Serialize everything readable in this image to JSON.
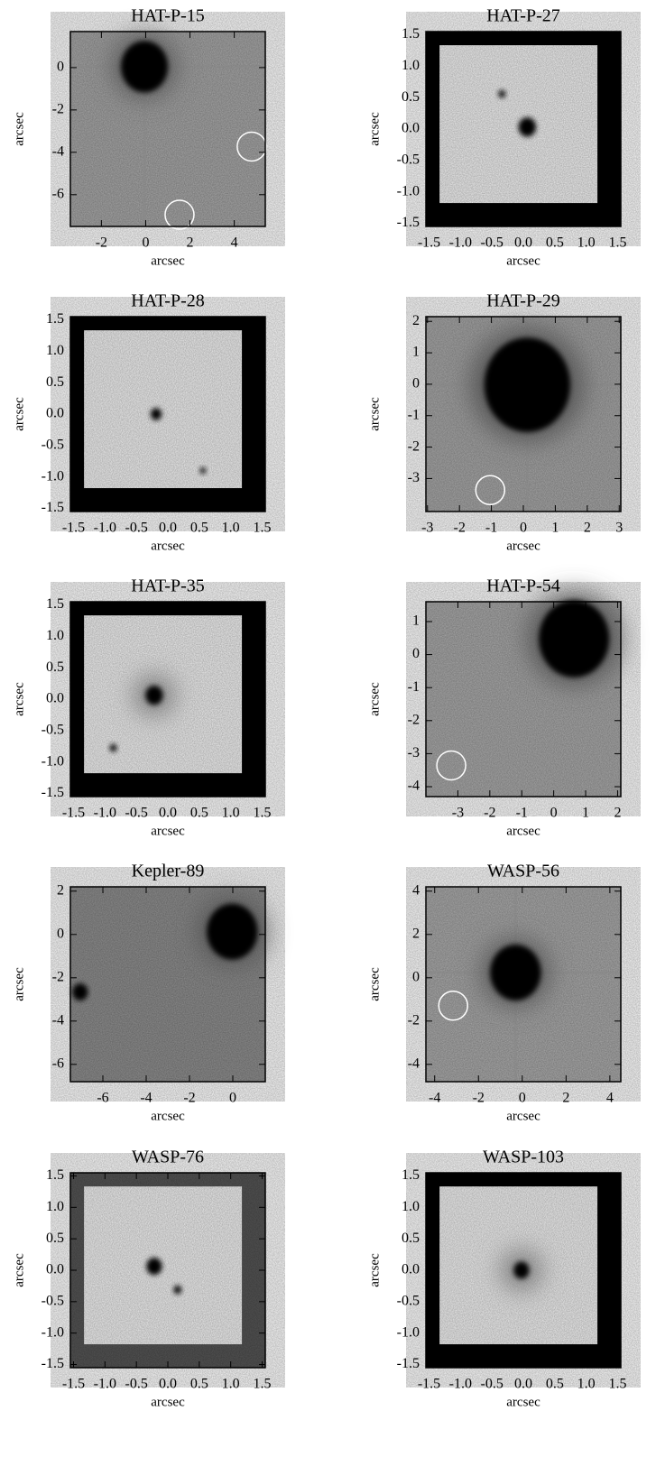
{
  "panels": [
    {
      "title": "HAT-P-15",
      "xlabel": "arcsec",
      "ylabel": "arcsec",
      "xlim": [
        -3.4,
        5.4
      ],
      "ylim": [
        -7.5,
        1.7
      ],
      "xticks": [
        -2,
        0,
        2,
        4
      ],
      "yticks": [
        0,
        -2,
        -4,
        -6
      ]
    },
    {
      "title": "HAT-P-27",
      "xlabel": "arcsec",
      "ylabel": "arcsec",
      "xlim": [
        -1.55,
        1.55
      ],
      "ylim": [
        -1.55,
        1.55
      ],
      "xticks": [
        -1.5,
        {
          "value": -1,
          "label": "-1.0"
        },
        -0.5,
        {
          "value": 0,
          "label": "0.0"
        },
        0.5,
        {
          "value": 1,
          "label": "1.0"
        },
        1.5
      ],
      "yticks": [
        1.5,
        {
          "value": 1,
          "label": "1.0"
        },
        0.5,
        {
          "value": 0,
          "label": "0.0"
        },
        -0.5,
        {
          "value": -1,
          "label": "-1.0"
        },
        -1.5
      ]
    },
    {
      "title": "HAT-P-28",
      "xlabel": "arcsec",
      "ylabel": "arcsec",
      "xlim": [
        -1.55,
        1.55
      ],
      "ylim": [
        -1.55,
        1.55
      ],
      "xticks": [
        -1.5,
        {
          "value": -1,
          "label": "-1.0"
        },
        -0.5,
        {
          "value": 0,
          "label": "0.0"
        },
        0.5,
        {
          "value": 1,
          "label": "1.0"
        },
        1.5
      ],
      "yticks": [
        1.5,
        {
          "value": 1,
          "label": "1.0"
        },
        0.5,
        {
          "value": 0,
          "label": "0.0"
        },
        -0.5,
        {
          "value": -1,
          "label": "-1.0"
        },
        -1.5
      ]
    },
    {
      "title": "HAT-P-29",
      "xlabel": "arcsec",
      "ylabel": "arcsec",
      "xlim": [
        -3.05,
        3.05
      ],
      "ylim": [
        -4.05,
        2.15
      ],
      "xticks": [
        -3,
        -2,
        -1,
        0,
        1,
        2,
        3
      ],
      "yticks": [
        2,
        1,
        0,
        -1,
        -2,
        -3
      ]
    },
    {
      "title": "HAT-P-35",
      "xlabel": "arcsec",
      "ylabel": "arcsec",
      "xlim": [
        -1.55,
        1.55
      ],
      "ylim": [
        -1.55,
        1.55
      ],
      "xticks": [
        -1.5,
        {
          "value": -1,
          "label": "-1.0"
        },
        -0.5,
        {
          "value": 0,
          "label": "0.0"
        },
        0.5,
        {
          "value": 1,
          "label": "1.0"
        },
        1.5
      ],
      "yticks": [
        1.5,
        {
          "value": 1,
          "label": "1.0"
        },
        0.5,
        {
          "value": 0,
          "label": "0.0"
        },
        -0.5,
        {
          "value": -1,
          "label": "-1.0"
        },
        -1.5
      ]
    },
    {
      "title": "HAT-P-54",
      "xlabel": "arcsec",
      "ylabel": "arcsec",
      "xlim": [
        -4.0,
        2.1
      ],
      "ylim": [
        -4.3,
        1.6
      ],
      "xticks": [
        -3,
        -2,
        -1,
        0,
        1,
        2
      ],
      "yticks": [
        1,
        0,
        -1,
        -2,
        -3,
        -4
      ]
    },
    {
      "title": "Kepler-89",
      "xlabel": "arcsec",
      "ylabel": "arcsec",
      "xlim": [
        -7.5,
        1.5
      ],
      "ylim": [
        -6.8,
        2.2
      ],
      "xticks": [
        -6,
        -4,
        -2,
        0
      ],
      "yticks": [
        2,
        0,
        -2,
        -4,
        -6
      ]
    },
    {
      "title": "WASP-56",
      "xlabel": "arcsec",
      "ylabel": "arcsec",
      "xlim": [
        -4.4,
        4.5
      ],
      "ylim": [
        -4.8,
        4.2
      ],
      "xticks": [
        -4,
        -2,
        0,
        2,
        4
      ],
      "yticks": [
        4,
        2,
        0,
        -2,
        -4
      ]
    },
    {
      "title": "WASP-76",
      "xlabel": "arcsec",
      "ylabel": "arcsec",
      "xlim": [
        -1.55,
        1.55
      ],
      "ylim": [
        -1.55,
        1.55
      ],
      "xticks": [
        -1.5,
        {
          "value": -1,
          "label": "-1.0"
        },
        -0.5,
        {
          "value": 0,
          "label": "0.0"
        },
        0.5,
        {
          "value": 1,
          "label": "1.0"
        },
        1.5
      ],
      "yticks": [
        1.5,
        {
          "value": 1,
          "label": "1.0"
        },
        0.5,
        {
          "value": 0,
          "label": "0.0"
        },
        -0.5,
        {
          "value": -1,
          "label": "-1.0"
        },
        -1.5
      ]
    },
    {
      "title": "WASP-103",
      "xlabel": "arcsec",
      "ylabel": "arcsec",
      "xlim": [
        -1.55,
        1.55
      ],
      "ylim": [
        -1.55,
        1.55
      ],
      "xticks": [
        -1.5,
        {
          "value": -1,
          "label": "-1.0"
        },
        -0.5,
        {
          "value": 0,
          "label": "0.0"
        },
        0.5,
        {
          "value": 1,
          "label": "1.0"
        },
        1.5
      ],
      "yticks": [
        1.5,
        {
          "value": 1,
          "label": "1.0"
        },
        0.5,
        {
          "value": 0,
          "label": "0.0"
        },
        -0.5,
        {
          "value": -1,
          "label": "-1.0"
        },
        -1.5
      ]
    }
  ]
}
